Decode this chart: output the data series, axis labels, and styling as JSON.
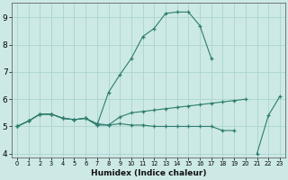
{
  "xlabel": "Humidex (Indice chaleur)",
  "x_values": [
    0,
    1,
    2,
    3,
    4,
    5,
    6,
    7,
    8,
    9,
    10,
    11,
    12,
    13,
    14,
    15,
    16,
    17,
    18,
    19,
    20,
    21,
    22,
    23
  ],
  "line_upper": [
    5.0,
    5.2,
    5.45,
    5.45,
    5.3,
    5.25,
    5.3,
    5.05,
    6.25,
    6.9,
    7.5,
    8.3,
    8.6,
    9.15,
    9.2,
    9.2,
    8.7,
    7.5,
    null,
    null,
    null,
    null,
    null,
    null
  ],
  "line_mid": [
    5.0,
    5.2,
    5.45,
    5.45,
    5.3,
    5.25,
    5.3,
    5.05,
    5.05,
    5.35,
    5.5,
    5.55,
    5.6,
    5.65,
    5.7,
    5.75,
    5.8,
    5.85,
    5.9,
    5.95,
    6.0,
    null,
    null,
    null
  ],
  "line_lower": [
    5.0,
    5.2,
    5.45,
    5.45,
    5.3,
    5.25,
    5.3,
    5.1,
    5.05,
    5.1,
    5.05,
    5.05,
    5.0,
    5.0,
    5.0,
    5.0,
    5.0,
    5.0,
    4.85,
    4.85,
    null,
    4.0,
    5.4,
    6.1
  ],
  "line_color": "#2d7d6d",
  "bg_color": "#cce9e6",
  "grid_color": "#aad4cf",
  "ylim": [
    3.85,
    9.55
  ],
  "yticks": [
    4,
    5,
    6,
    7,
    8,
    9
  ],
  "xlim": [
    -0.5,
    23.5
  ]
}
